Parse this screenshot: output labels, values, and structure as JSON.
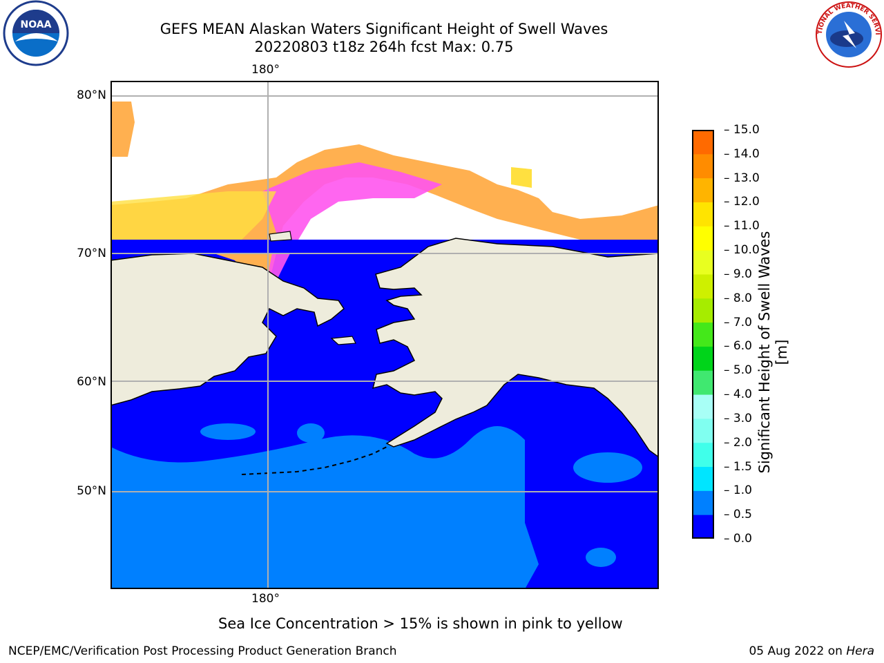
{
  "title": {
    "line1": "GEFS MEAN Alaskan Waters Significant Height of Swell Waves",
    "line2": "20220803 t18z 264h fcst   Max: 0.75"
  },
  "logos": {
    "left": "noaa-logo",
    "right": "national-weather-service-logo",
    "right_ring_text": "NATIONAL WEATHER SERVICE"
  },
  "map": {
    "lon_label_top": "180°",
    "lon_label_bottom": "180°",
    "lat_labels": [
      "80°N",
      "70°N",
      "60°N",
      "50°N"
    ],
    "colors": {
      "ocean_low": "#0000ff",
      "ocean_mid": "#0080ff",
      "land": "#eeecdc",
      "ice_pink": "#ff55ee",
      "ice_orange": "#ffb050",
      "ice_yellow": "#ffe040",
      "gridline": "#b0b0b0",
      "coast": "#000000"
    }
  },
  "colorbar": {
    "title": "Significant Height of Swell Waves [m]",
    "labels": [
      "15.0",
      "14.0",
      "13.0",
      "12.0",
      "11.0",
      "10.0",
      "9.0",
      "8.0",
      "7.0",
      "6.0",
      "5.0",
      "4.0",
      "3.0",
      "2.0",
      "1.5",
      "1.0",
      "0.5",
      "0.0"
    ],
    "colors_bottom_to_top": [
      "#0000ff",
      "#0080ff",
      "#00e5ff",
      "#40ffea",
      "#80fff0",
      "#a8fff6",
      "#40e870",
      "#00d41a",
      "#44e81a",
      "#a6ec00",
      "#cef000",
      "#e8ff20",
      "#ffff00",
      "#ffe400",
      "#ffb400",
      "#ff8c00",
      "#ff6a00",
      "#ff3c00",
      "#ff0000"
    ]
  },
  "footer": {
    "note": "Sea Ice Concentration > 15% is shown in pink to yellow",
    "credit": "NCEP/EMC/Verification Post Processing Product Generation Branch",
    "date": "05 Aug 2022 on ",
    "host": "Hera"
  }
}
